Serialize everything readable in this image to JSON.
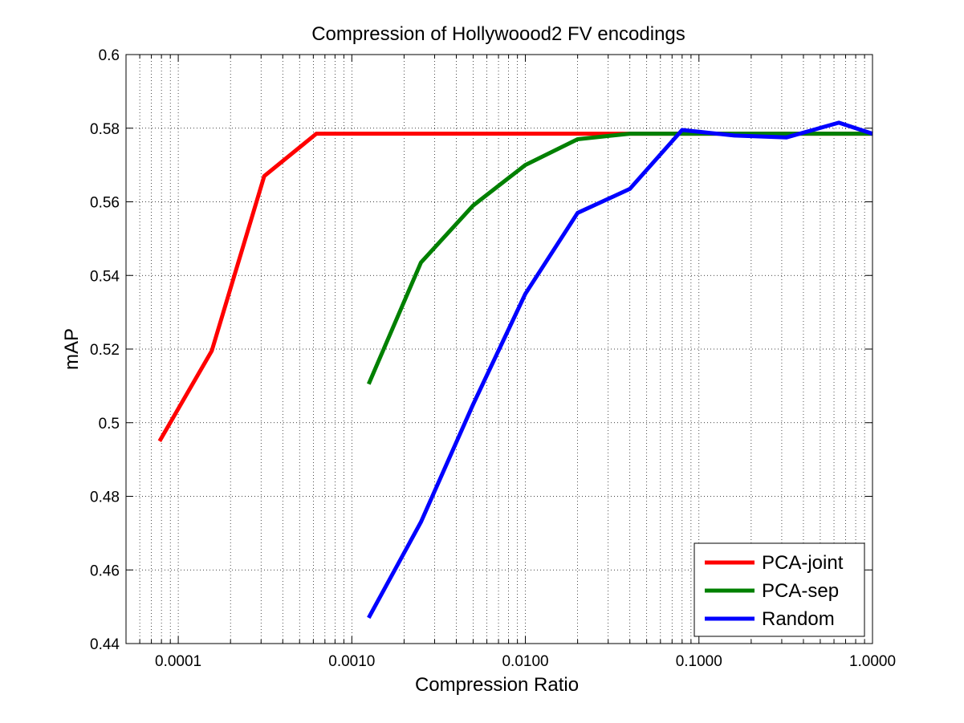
{
  "chart_data": {
    "type": "line",
    "title": "Compression of Hollywoood2 FV encodings",
    "xlabel": "Compression Ratio",
    "ylabel": "mAP",
    "xscale": "log",
    "xlim": [
      5e-05,
      1.0
    ],
    "ylim": [
      0.44,
      0.6
    ],
    "xticks": [
      0.0001,
      0.001,
      0.01,
      0.1,
      1.0
    ],
    "xtick_labels": [
      "0.0001",
      "0.0010",
      "0.0100",
      "0.1000",
      "1.0000"
    ],
    "yticks": [
      0.44,
      0.46,
      0.48,
      0.5,
      0.52,
      0.54,
      0.56,
      0.58,
      0.6
    ],
    "ytick_labels": [
      "0.44",
      "0.46",
      "0.48",
      "0.5",
      "0.52",
      "0.54",
      "0.56",
      "0.58",
      "0.6"
    ],
    "grid": "on (dotted, major and minor)",
    "legend_position": "bottom-right",
    "series": [
      {
        "name": "PCA-joint",
        "color": "#ff0000",
        "x": [
          7.8e-05,
          0.000156,
          0.000313,
          0.000625,
          0.00125,
          0.0025,
          0.005,
          0.01,
          0.02,
          0.04,
          0.08,
          0.16,
          0.32,
          0.64,
          1.0
        ],
        "y": [
          0.495,
          0.5195,
          0.567,
          0.5785,
          0.5785,
          0.5785,
          0.5785,
          0.5785,
          0.5785,
          0.5785,
          0.5785,
          0.5785,
          0.5785,
          0.5785,
          0.5785
        ]
      },
      {
        "name": "PCA-sep",
        "color": "#008000",
        "x": [
          0.00125,
          0.0025,
          0.005,
          0.01,
          0.02,
          0.04,
          0.08,
          0.16,
          0.32,
          0.64,
          1.0
        ],
        "y": [
          0.5105,
          0.5435,
          0.559,
          0.57,
          0.577,
          0.5785,
          0.5785,
          0.5785,
          0.5785,
          0.5785,
          0.5785
        ]
      },
      {
        "name": "Random",
        "color": "#0000ff",
        "x": [
          0.00125,
          0.0025,
          0.005,
          0.01,
          0.02,
          0.04,
          0.08,
          0.16,
          0.32,
          0.64,
          1.0
        ],
        "y": [
          0.447,
          0.473,
          0.505,
          0.535,
          0.557,
          0.5635,
          0.5795,
          0.578,
          0.5775,
          0.5815,
          0.5785
        ]
      }
    ]
  }
}
